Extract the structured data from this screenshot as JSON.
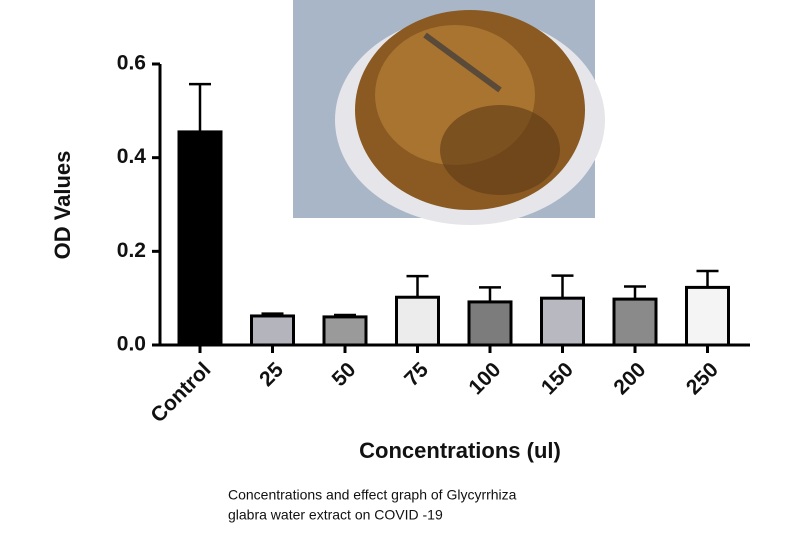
{
  "chart_data": {
    "type": "bar",
    "categories": [
      "Control",
      "25",
      "50",
      "75",
      "100",
      "150",
      "200",
      "250"
    ],
    "values": [
      0.455,
      0.062,
      0.06,
      0.102,
      0.092,
      0.1,
      0.098,
      0.123
    ],
    "errors": [
      0.102,
      0.005,
      0.004,
      0.045,
      0.031,
      0.048,
      0.027,
      0.035
    ],
    "colors": [
      "#000000",
      "#b4b4bc",
      "#9a9a9a",
      "#ececec",
      "#7c7c7c",
      "#b8b8c0",
      "#8a8a8a",
      "#f4f4f4"
    ],
    "ylim": [
      0,
      0.6
    ],
    "yticks": [
      {
        "value": 0,
        "label": "0.0"
      },
      0.2,
      0.4,
      0.6
    ],
    "y_label": "OD Values",
    "x_label": "Concentrations (ul)",
    "caption": [
      "Concentrations and effect graph of Glycyrrhiza",
      "glabra water extract on COVID -19"
    ]
  }
}
